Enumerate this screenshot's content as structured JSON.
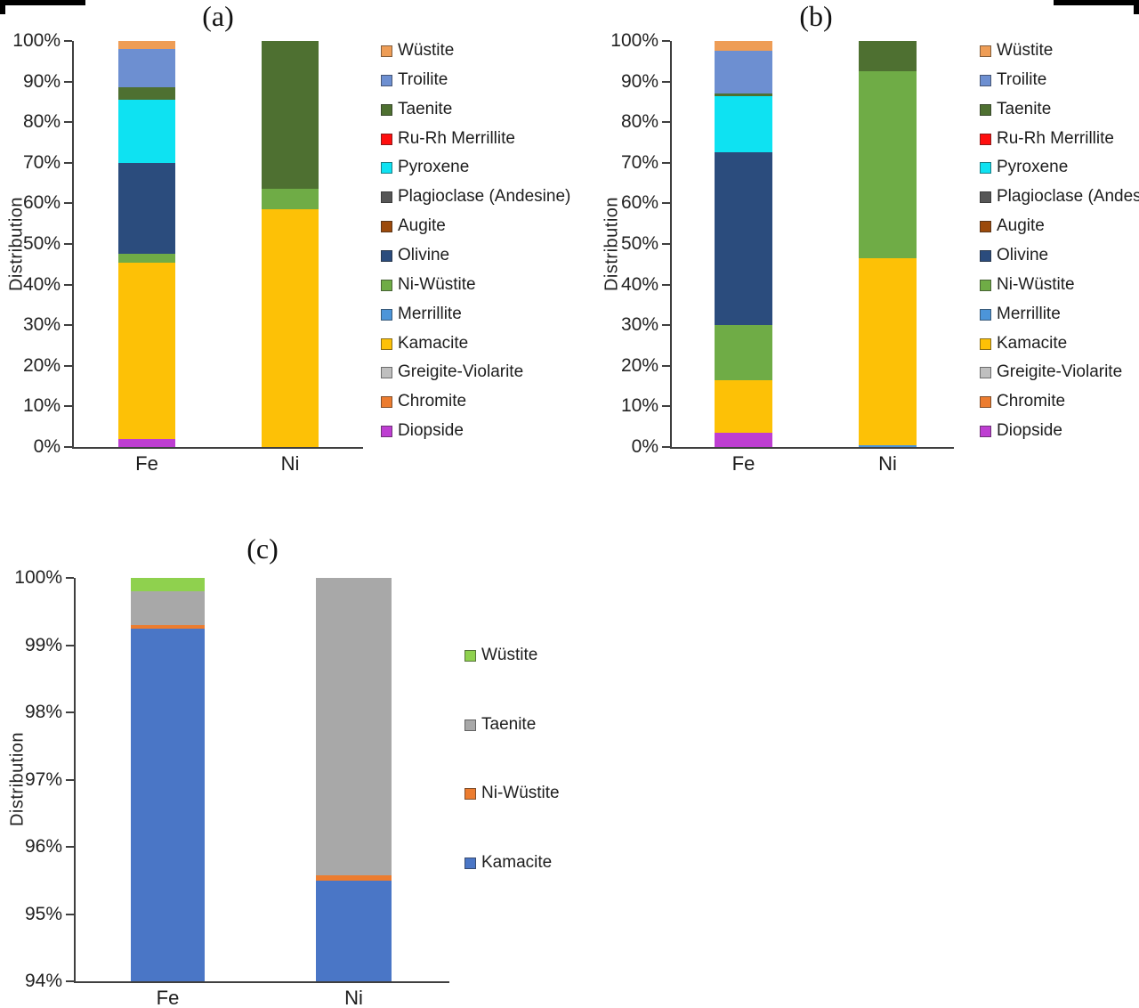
{
  "figure": {
    "background": "#ffffff"
  },
  "charts": [
    {
      "id": "a",
      "title": "(a)",
      "y_axis_label": "Distribution",
      "y_min": 0,
      "y_max": 100,
      "y_ticks": [
        {
          "label": "0%",
          "value": 0
        },
        {
          "label": "10%",
          "value": 10
        },
        {
          "label": "20%",
          "value": 20
        },
        {
          "label": "30%",
          "value": 30
        },
        {
          "label": "40%",
          "value": 40
        },
        {
          "label": "50%",
          "value": 50
        },
        {
          "label": "60%",
          "value": 60
        },
        {
          "label": "70%",
          "value": 70
        },
        {
          "label": "80%",
          "value": 80
        },
        {
          "label": "90%",
          "value": 90
        },
        {
          "label": "100%",
          "value": 100
        }
      ],
      "categories": [
        "Fe",
        "Ni"
      ],
      "legend": [
        {
          "label": "Wüstite",
          "color": "#EE9D56"
        },
        {
          "label": "Troilite",
          "color": "#6D8FD1"
        },
        {
          "label": "Taenite",
          "color": "#4E7031"
        },
        {
          "label": "Ru-Rh Merrillite",
          "color": "#FF0E0E"
        },
        {
          "label": "Pyroxene",
          "color": "#0EE2F2"
        },
        {
          "label": "Plagioclase (Andesine)",
          "color": "#565656"
        },
        {
          "label": "Augite",
          "color": "#9C4A0B"
        },
        {
          "label": "Olivine",
          "color": "#2B4C7D"
        },
        {
          "label": "Ni-Wüstite",
          "color": "#6FAC46"
        },
        {
          "label": "Merrillite",
          "color": "#4C95D9"
        },
        {
          "label": "Kamacite",
          "color": "#FDC106"
        },
        {
          "label": "Greigite-Violarite",
          "color": "#BFBFBF"
        },
        {
          "label": "Chromite",
          "color": "#EC7C2F"
        },
        {
          "label": "Diopside",
          "color": "#BE3ED2"
        }
      ],
      "bars": [
        {
          "category": "Fe",
          "segments": [
            {
              "mineral": "Diopside",
              "value": 2
            },
            {
              "mineral": "Kamacite",
              "value": 43.5
            },
            {
              "mineral": "Ni-Wüstite",
              "value": 2
            },
            {
              "mineral": "Olivine",
              "value": 22.5
            },
            {
              "mineral": "Pyroxene",
              "value": 15.5
            },
            {
              "mineral": "Taenite",
              "value": 3
            },
            {
              "mineral": "Troilite",
              "value": 9.5
            },
            {
              "mineral": "Wüstite",
              "value": 2
            }
          ]
        },
        {
          "category": "Ni",
          "segments": [
            {
              "mineral": "Kamacite",
              "value": 58.5
            },
            {
              "mineral": "Ni-Wüstite",
              "value": 5
            },
            {
              "mineral": "Taenite",
              "value": 36.5
            }
          ]
        }
      ]
    },
    {
      "id": "b",
      "title": "(b)",
      "y_axis_label": "Distribution",
      "y_min": 0,
      "y_max": 100,
      "y_ticks": [
        {
          "label": "0%",
          "value": 0
        },
        {
          "label": "10%",
          "value": 10
        },
        {
          "label": "20%",
          "value": 20
        },
        {
          "label": "30%",
          "value": 30
        },
        {
          "label": "40%",
          "value": 40
        },
        {
          "label": "50%",
          "value": 50
        },
        {
          "label": "60%",
          "value": 60
        },
        {
          "label": "70%",
          "value": 70
        },
        {
          "label": "80%",
          "value": 80
        },
        {
          "label": "90%",
          "value": 90
        },
        {
          "label": "100%",
          "value": 100
        }
      ],
      "categories": [
        "Fe",
        "Ni"
      ],
      "legend": [
        {
          "label": "Wüstite",
          "color": "#EE9D56"
        },
        {
          "label": "Troilite",
          "color": "#6D8FD1"
        },
        {
          "label": "Taenite",
          "color": "#4E7031"
        },
        {
          "label": "Ru-Rh Merrillite",
          "color": "#FF0E0E"
        },
        {
          "label": "Pyroxene",
          "color": "#0EE2F2"
        },
        {
          "label": "Plagioclase (Andesine)",
          "color": "#565656"
        },
        {
          "label": "Augite",
          "color": "#9C4A0B"
        },
        {
          "label": "Olivine",
          "color": "#2B4C7D"
        },
        {
          "label": "Ni-Wüstite",
          "color": "#6FAC46"
        },
        {
          "label": "Merrillite",
          "color": "#4C95D9"
        },
        {
          "label": "Kamacite",
          "color": "#FDC106"
        },
        {
          "label": "Greigite-Violarite",
          "color": "#BFBFBF"
        },
        {
          "label": "Chromite",
          "color": "#EC7C2F"
        },
        {
          "label": "Diopside",
          "color": "#BE3ED2"
        }
      ],
      "bars": [
        {
          "category": "Fe",
          "segments": [
            {
              "mineral": "Diopside",
              "value": 3.5
            },
            {
              "mineral": "Kamacite",
              "value": 13
            },
            {
              "mineral": "Ni-Wüstite",
              "value": 13.5
            },
            {
              "mineral": "Olivine",
              "value": 42.5
            },
            {
              "mineral": "Pyroxene",
              "value": 14
            },
            {
              "mineral": "Taenite",
              "value": 0.5
            },
            {
              "mineral": "Troilite",
              "value": 10.5
            },
            {
              "mineral": "Wüstite",
              "value": 2.5
            }
          ]
        },
        {
          "category": "Ni",
          "segments": [
            {
              "mineral": "Merrillite",
              "value": 0.5
            },
            {
              "mineral": "Kamacite",
              "value": 46
            },
            {
              "mineral": "Ni-Wüstite",
              "value": 46
            },
            {
              "mineral": "Taenite",
              "value": 7.5
            }
          ]
        }
      ]
    },
    {
      "id": "c",
      "title": "(c)",
      "y_axis_label": "Distribution",
      "y_min": 94,
      "y_max": 100,
      "y_ticks": [
        {
          "label": "94%",
          "value": 94
        },
        {
          "label": "95%",
          "value": 95
        },
        {
          "label": "96%",
          "value": 96
        },
        {
          "label": "97%",
          "value": 97
        },
        {
          "label": "98%",
          "value": 98
        },
        {
          "label": "99%",
          "value": 99
        },
        {
          "label": "100%",
          "value": 100
        }
      ],
      "categories": [
        "Fe",
        "Ni"
      ],
      "legend": [
        {
          "label": "Wüstite",
          "color": "#8FD14E"
        },
        {
          "label": "Taenite",
          "color": "#A8A8A8"
        },
        {
          "label": "Ni-Wüstite",
          "color": "#EC7C2F"
        },
        {
          "label": "Kamacite",
          "color": "#4A76C6"
        }
      ],
      "bars": [
        {
          "category": "Fe",
          "segments": [
            {
              "mineral": "Kamacite",
              "value": 99.25
            },
            {
              "mineral": "Ni-Wüstite",
              "value": 0.05
            },
            {
              "mineral": "Taenite",
              "value": 0.5
            },
            {
              "mineral": "Wüstite",
              "value": 0.2
            }
          ]
        },
        {
          "category": "Ni",
          "segments": [
            {
              "mineral": "Kamacite",
              "value": 95.5
            },
            {
              "mineral": "Ni-Wüstite",
              "value": 0.08
            },
            {
              "mineral": "Taenite",
              "value": 4.42
            }
          ]
        }
      ]
    }
  ],
  "chart_data": [
    {
      "type": "bar",
      "stacked": true,
      "title": "(a)",
      "xlabel": "",
      "ylabel": "Distribution",
      "ylim": [
        0,
        100
      ],
      "y_tick_format": "percent",
      "legend_position": "right",
      "grid": false,
      "categories": [
        "Fe",
        "Ni"
      ],
      "series": [
        {
          "name": "Wüstite",
          "values": [
            2,
            0
          ]
        },
        {
          "name": "Troilite",
          "values": [
            9.5,
            0
          ]
        },
        {
          "name": "Taenite",
          "values": [
            3,
            36.5
          ]
        },
        {
          "name": "Ru-Rh Merrillite",
          "values": [
            0,
            0
          ]
        },
        {
          "name": "Pyroxene",
          "values": [
            15.5,
            0
          ]
        },
        {
          "name": "Plagioclase (Andesine)",
          "values": [
            0,
            0
          ]
        },
        {
          "name": "Augite",
          "values": [
            0,
            0
          ]
        },
        {
          "name": "Olivine",
          "values": [
            22.5,
            0
          ]
        },
        {
          "name": "Ni-Wüstite",
          "values": [
            2,
            5
          ]
        },
        {
          "name": "Merrillite",
          "values": [
            0,
            0
          ]
        },
        {
          "name": "Kamacite",
          "values": [
            43.5,
            58.5
          ]
        },
        {
          "name": "Greigite-Violarite",
          "values": [
            0,
            0
          ]
        },
        {
          "name": "Chromite",
          "values": [
            0,
            0
          ]
        },
        {
          "name": "Diopside",
          "values": [
            2,
            0
          ]
        }
      ]
    },
    {
      "type": "bar",
      "stacked": true,
      "title": "(b)",
      "xlabel": "",
      "ylabel": "Distribution",
      "ylim": [
        0,
        100
      ],
      "y_tick_format": "percent",
      "legend_position": "right",
      "grid": false,
      "categories": [
        "Fe",
        "Ni"
      ],
      "series": [
        {
          "name": "Wüstite",
          "values": [
            2.5,
            0
          ]
        },
        {
          "name": "Troilite",
          "values": [
            10.5,
            0
          ]
        },
        {
          "name": "Taenite",
          "values": [
            0.5,
            7.5
          ]
        },
        {
          "name": "Ru-Rh Merrillite",
          "values": [
            0,
            0
          ]
        },
        {
          "name": "Pyroxene",
          "values": [
            14,
            0
          ]
        },
        {
          "name": "Plagioclase (Andesine)",
          "values": [
            0,
            0
          ]
        },
        {
          "name": "Augite",
          "values": [
            0,
            0
          ]
        },
        {
          "name": "Olivine",
          "values": [
            42.5,
            0
          ]
        },
        {
          "name": "Ni-Wüstite",
          "values": [
            13.5,
            46
          ]
        },
        {
          "name": "Merrillite",
          "values": [
            0,
            0.5
          ]
        },
        {
          "name": "Kamacite",
          "values": [
            13,
            46
          ]
        },
        {
          "name": "Greigite-Violarite",
          "values": [
            0,
            0
          ]
        },
        {
          "name": "Chromite",
          "values": [
            0,
            0
          ]
        },
        {
          "name": "Diopside",
          "values": [
            3.5,
            0
          ]
        }
      ]
    },
    {
      "type": "bar",
      "stacked": true,
      "title": "(c)",
      "xlabel": "",
      "ylabel": "Distribution",
      "ylim": [
        94,
        100
      ],
      "y_tick_format": "percent",
      "legend_position": "right",
      "grid": false,
      "categories": [
        "Fe",
        "Ni"
      ],
      "series": [
        {
          "name": "Wüstite",
          "values": [
            0.2,
            0
          ]
        },
        {
          "name": "Taenite",
          "values": [
            0.5,
            4.42
          ]
        },
        {
          "name": "Ni-Wüstite",
          "values": [
            0.05,
            0.08
          ]
        },
        {
          "name": "Kamacite",
          "values": [
            99.25,
            95.5
          ]
        }
      ]
    }
  ]
}
